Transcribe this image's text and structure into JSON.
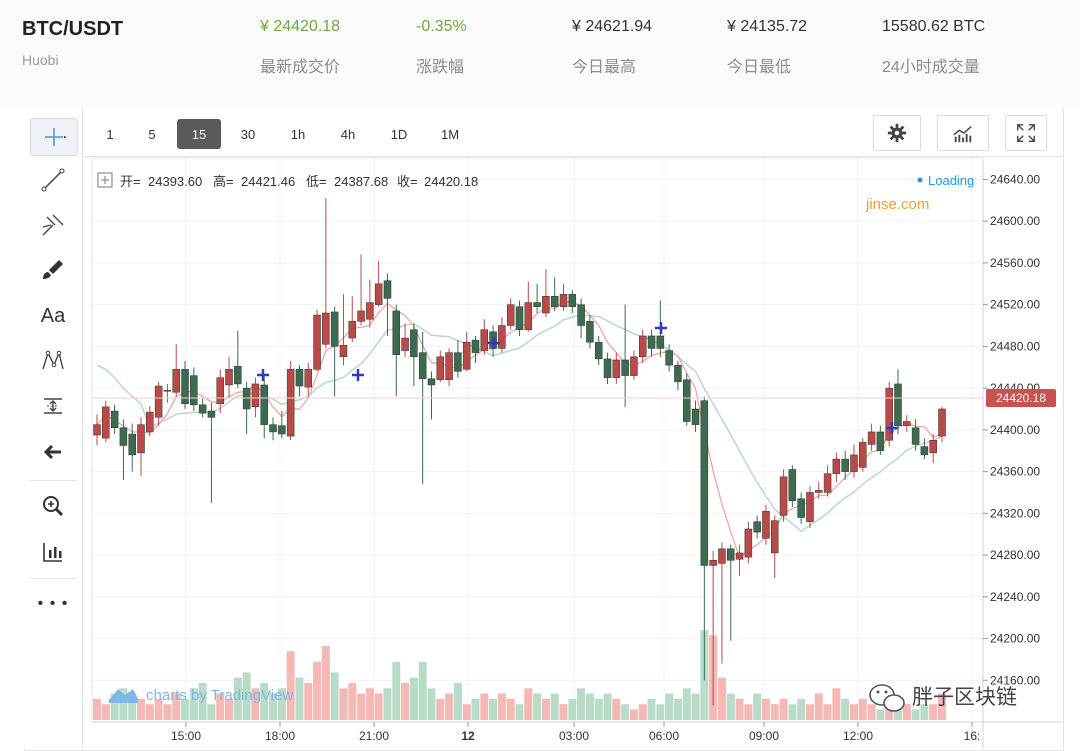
{
  "header": {
    "pair": "BTC/USDT",
    "exchange": "Huobi",
    "stats": [
      {
        "value": "¥ 24420.18",
        "label": "最新成交价",
        "color": "#6ea93e"
      },
      {
        "value": "-0.35%",
        "label": "涨跌幅",
        "color": "#6ea93e"
      },
      {
        "value": "¥ 24621.94",
        "label": "今日最高",
        "color": "#333333"
      },
      {
        "value": "¥ 24135.72",
        "label": "今日最低",
        "color": "#333333"
      },
      {
        "value": "15580.62 BTC",
        "label": "24小时成交量",
        "color": "#333333"
      }
    ]
  },
  "toolbar": {
    "intervals": [
      "1",
      "5",
      "15",
      "30",
      "1h",
      "4h",
      "1D",
      "1M"
    ],
    "active_interval": "15",
    "right_buttons": [
      "gear-icon",
      "indicators-icon",
      "fullscreen-icon"
    ],
    "left_tools": [
      "crosshair-icon",
      "trendline-icon",
      "pitchfork-icon",
      "brush-icon",
      "text-tool-icon",
      "pattern-icon",
      "measure-icon",
      "arrow-left-icon",
      "zoom-icon",
      "bars-icon",
      "more-icon"
    ],
    "text_tool_label": "Aa",
    "more_label": "• • •"
  },
  "legend": {
    "open_label": "开=",
    "open": "24393.60",
    "high_label": "高=",
    "high": "24421.46",
    "low_label": "低=",
    "low": "24387.68",
    "close_label": "收=",
    "close": "24420.18"
  },
  "status": {
    "loading": "Loading",
    "loading_color": "#2196f3"
  },
  "watermark": {
    "site": "jinse.com",
    "tradingview": "charts by TradingView",
    "channel": "胖子区块链"
  },
  "current_price_tag": "24420.18",
  "chart_data": {
    "type": "candlestick",
    "ylim": [
      24120,
      24650
    ],
    "y_ticks": [
      "24640.00",
      "24600.00",
      "24560.00",
      "24520.00",
      "24480.00",
      "24440.00",
      "24400.00",
      "24360.00",
      "24320.00",
      "24280.00",
      "24240.00",
      "24200.00",
      "24160.00"
    ],
    "x_ticks": [
      "15:00",
      "18:00",
      "21:00",
      "12",
      "03:00",
      "06:00",
      "09:00",
      "12:00",
      "16:"
    ],
    "colors": {
      "up": "#b94a48",
      "down": "#3d6b4f",
      "up_vol": "#f4b8b5",
      "down_vol": "#b9dcc9",
      "ma_fast": "#e8a9a7",
      "ma_slow": "#b9d8c8"
    },
    "candles": [
      {
        "o": 24395,
        "c": 24405,
        "h": 24415,
        "l": 24385,
        "v": 0.4
      },
      {
        "o": 24392,
        "c": 24422,
        "h": 24428,
        "l": 24388,
        "v": 0.3
      },
      {
        "o": 24418,
        "c": 24402,
        "h": 24424,
        "l": 24396,
        "v": 0.5
      },
      {
        "o": 24402,
        "c": 24385,
        "h": 24410,
        "l": 24352,
        "v": 0.6
      },
      {
        "o": 24396,
        "c": 24376,
        "h": 24406,
        "l": 24360,
        "v": 0.5
      },
      {
        "o": 24378,
        "c": 24405,
        "h": 24412,
        "l": 24356,
        "v": 0.4
      },
      {
        "o": 24398,
        "c": 24417,
        "h": 24423,
        "l": 24394,
        "v": 0.3
      },
      {
        "o": 24412,
        "c": 24442,
        "h": 24446,
        "l": 24404,
        "v": 0.4
      },
      {
        "o": 24437,
        "c": 24438,
        "h": 24444,
        "l": 24426,
        "v": 0.3
      },
      {
        "o": 24436,
        "c": 24458,
        "h": 24482,
        "l": 24432,
        "v": 0.5
      },
      {
        "o": 24458,
        "c": 24425,
        "h": 24466,
        "l": 24420,
        "v": 0.4
      },
      {
        "o": 24452,
        "c": 24424,
        "h": 24460,
        "l": 24418,
        "v": 0.6
      },
      {
        "o": 24424,
        "c": 24416,
        "h": 24430,
        "l": 24412,
        "v": 0.7
      },
      {
        "o": 24418,
        "c": 24412,
        "h": 24426,
        "l": 24330,
        "v": 0.3
      },
      {
        "o": 24425,
        "c": 24450,
        "h": 24458,
        "l": 24416,
        "v": 0.5
      },
      {
        "o": 24443,
        "c": 24458,
        "h": 24470,
        "l": 24430,
        "v": 0.4
      },
      {
        "o": 24461,
        "c": 24444,
        "h": 24495,
        "l": 24440,
        "v": 0.8
      },
      {
        "o": 24440,
        "c": 24420,
        "h": 24446,
        "l": 24396,
        "v": 0.9
      },
      {
        "o": 24422,
        "c": 24444,
        "h": 24450,
        "l": 24412,
        "v": 0.6
      },
      {
        "o": 24443,
        "c": 24405,
        "h": 24452,
        "l": 24392,
        "v": 0.7
      },
      {
        "o": 24405,
        "c": 24398,
        "h": 24412,
        "l": 24390,
        "v": 0.5
      },
      {
        "o": 24404,
        "c": 24396,
        "h": 24418,
        "l": 24392,
        "v": 0.6
      },
      {
        "o": 24394,
        "c": 24458,
        "h": 24466,
        "l": 24390,
        "v": 1.3
      },
      {
        "o": 24458,
        "c": 24442,
        "h": 24462,
        "l": 24432,
        "v": 0.8
      },
      {
        "o": 24441,
        "c": 24458,
        "h": 24464,
        "l": 24432,
        "v": 0.7
      },
      {
        "o": 24458,
        "c": 24510,
        "h": 24515,
        "l": 24456,
        "v": 1.1
      },
      {
        "o": 24482,
        "c": 24512,
        "h": 24622,
        "l": 24478,
        "v": 1.4
      },
      {
        "o": 24513,
        "c": 24480,
        "h": 24518,
        "l": 24432,
        "v": 0.9
      },
      {
        "o": 24470,
        "c": 24481,
        "h": 24530,
        "l": 24462,
        "v": 0.6
      },
      {
        "o": 24488,
        "c": 24504,
        "h": 24528,
        "l": 24484,
        "v": 0.7
      },
      {
        "o": 24504,
        "c": 24514,
        "h": 24568,
        "l": 24500,
        "v": 0.5
      },
      {
        "o": 24506,
        "c": 24522,
        "h": 24544,
        "l": 24498,
        "v": 0.6
      },
      {
        "o": 24520,
        "c": 24540,
        "h": 24562,
        "l": 24518,
        "v": 0.5
      },
      {
        "o": 24543,
        "c": 24526,
        "h": 24550,
        "l": 24490,
        "v": 0.6
      },
      {
        "o": 24514,
        "c": 24472,
        "h": 24520,
        "l": 24432,
        "v": 1.1
      },
      {
        "o": 24476,
        "c": 24488,
        "h": 24502,
        "l": 24470,
        "v": 0.7
      },
      {
        "o": 24496,
        "c": 24470,
        "h": 24502,
        "l": 24442,
        "v": 0.8
      },
      {
        "o": 24474,
        "c": 24449,
        "h": 24494,
        "l": 24348,
        "v": 1.1
      },
      {
        "o": 24449,
        "c": 24443,
        "h": 24456,
        "l": 24410,
        "v": 0.6
      },
      {
        "o": 24448,
        "c": 24470,
        "h": 24476,
        "l": 24446,
        "v": 0.4
      },
      {
        "o": 24448,
        "c": 24474,
        "h": 24478,
        "l": 24442,
        "v": 0.5
      },
      {
        "o": 24474,
        "c": 24456,
        "h": 24486,
        "l": 24450,
        "v": 0.7
      },
      {
        "o": 24458,
        "c": 24484,
        "h": 24494,
        "l": 24456,
        "v": 0.3
      },
      {
        "o": 24486,
        "c": 24474,
        "h": 24490,
        "l": 24464,
        "v": 0.4
      },
      {
        "o": 24476,
        "c": 24496,
        "h": 24506,
        "l": 24472,
        "v": 0.5
      },
      {
        "o": 24494,
        "c": 24478,
        "h": 24500,
        "l": 24470,
        "v": 0.4
      },
      {
        "o": 24478,
        "c": 24500,
        "h": 24508,
        "l": 24474,
        "v": 0.5
      },
      {
        "o": 24500,
        "c": 24520,
        "h": 24526,
        "l": 24496,
        "v": 0.4
      },
      {
        "o": 24518,
        "c": 24496,
        "h": 24524,
        "l": 24490,
        "v": 0.3
      },
      {
        "o": 24496,
        "c": 24522,
        "h": 24542,
        "l": 24494,
        "v": 0.6
      },
      {
        "o": 24522,
        "c": 24518,
        "h": 24540,
        "l": 24512,
        "v": 0.5
      },
      {
        "o": 24512,
        "c": 24528,
        "h": 24554,
        "l": 24508,
        "v": 0.4
      },
      {
        "o": 24528,
        "c": 24518,
        "h": 24546,
        "l": 24514,
        "v": 0.5
      },
      {
        "o": 24518,
        "c": 24530,
        "h": 24540,
        "l": 24514,
        "v": 0.3
      },
      {
        "o": 24530,
        "c": 24518,
        "h": 24534,
        "l": 24512,
        "v": 0.4
      },
      {
        "o": 24520,
        "c": 24500,
        "h": 24526,
        "l": 24488,
        "v": 0.6
      },
      {
        "o": 24504,
        "c": 24484,
        "h": 24510,
        "l": 24478,
        "v": 0.5
      },
      {
        "o": 24484,
        "c": 24468,
        "h": 24490,
        "l": 24462,
        "v": 0.4
      },
      {
        "o": 24468,
        "c": 24450,
        "h": 24474,
        "l": 24444,
        "v": 0.5
      },
      {
        "o": 24450,
        "c": 24467,
        "h": 24474,
        "l": 24444,
        "v": 0.4
      },
      {
        "o": 24467,
        "c": 24452,
        "h": 24520,
        "l": 24422,
        "v": 0.3
      },
      {
        "o": 24452,
        "c": 24470,
        "h": 24476,
        "l": 24448,
        "v": 0.2
      },
      {
        "o": 24470,
        "c": 24490,
        "h": 24496,
        "l": 24464,
        "v": 0.3
      },
      {
        "o": 24490,
        "c": 24478,
        "h": 24496,
        "l": 24470,
        "v": 0.4
      },
      {
        "o": 24490,
        "c": 24478,
        "h": 24524,
        "l": 24470,
        "v": 0.3
      },
      {
        "o": 24476,
        "c": 24462,
        "h": 24482,
        "l": 24456,
        "v": 0.5
      },
      {
        "o": 24462,
        "c": 24446,
        "h": 24466,
        "l": 24438,
        "v": 0.4
      },
      {
        "o": 24448,
        "c": 24408,
        "h": 24454,
        "l": 24404,
        "v": 0.6
      },
      {
        "o": 24420,
        "c": 24405,
        "h": 24428,
        "l": 24398,
        "v": 0.5
      },
      {
        "o": 24428,
        "c": 24270,
        "h": 24432,
        "l": 24160,
        "v": 1.7
      },
      {
        "o": 24270,
        "c": 24275,
        "h": 24284,
        "l": 24136,
        "v": 1.6
      },
      {
        "o": 24272,
        "c": 24286,
        "h": 24292,
        "l": 24176,
        "v": 0.8
      },
      {
        "o": 24286,
        "c": 24275,
        "h": 24290,
        "l": 24198,
        "v": 0.5
      },
      {
        "o": 24276,
        "c": 24282,
        "h": 24290,
        "l": 24260,
        "v": 0.4
      },
      {
        "o": 24278,
        "c": 24305,
        "h": 24312,
        "l": 24272,
        "v": 0.3
      },
      {
        "o": 24312,
        "c": 24302,
        "h": 24318,
        "l": 24296,
        "v": 0.5
      },
      {
        "o": 24296,
        "c": 24322,
        "h": 24328,
        "l": 24290,
        "v": 0.4
      },
      {
        "o": 24282,
        "c": 24313,
        "h": 24318,
        "l": 24258,
        "v": 0.3
      },
      {
        "o": 24318,
        "c": 24355,
        "h": 24362,
        "l": 24312,
        "v": 0.4
      },
      {
        "o": 24362,
        "c": 24332,
        "h": 24366,
        "l": 24326,
        "v": 0.3
      },
      {
        "o": 24334,
        "c": 24316,
        "h": 24340,
        "l": 24310,
        "v": 0.4
      },
      {
        "o": 24312,
        "c": 24340,
        "h": 24346,
        "l": 24306,
        "v": 0.3
      },
      {
        "o": 24340,
        "c": 24342,
        "h": 24350,
        "l": 24334,
        "v": 0.5
      },
      {
        "o": 24340,
        "c": 24358,
        "h": 24366,
        "l": 24336,
        "v": 0.3
      },
      {
        "o": 24358,
        "c": 24372,
        "h": 24378,
        "l": 24350,
        "v": 0.6
      },
      {
        "o": 24372,
        "c": 24360,
        "h": 24380,
        "l": 24352,
        "v": 0.4
      },
      {
        "o": 24360,
        "c": 24376,
        "h": 24386,
        "l": 24354,
        "v": 0.3
      },
      {
        "o": 24364,
        "c": 24388,
        "h": 24392,
        "l": 24360,
        "v": 0.4
      },
      {
        "o": 24386,
        "c": 24398,
        "h": 24406,
        "l": 24380,
        "v": 0.3
      },
      {
        "o": 24398,
        "c": 24380,
        "h": 24404,
        "l": 24376,
        "v": 0.2
      },
      {
        "o": 24390,
        "c": 24440,
        "h": 24446,
        "l": 24384,
        "v": 0.3
      },
      {
        "o": 24444,
        "c": 24404,
        "h": 24458,
        "l": 24396,
        "v": 0.4
      },
      {
        "o": 24404,
        "c": 24408,
        "h": 24414,
        "l": 24398,
        "v": 0.3
      },
      {
        "o": 24402,
        "c": 24386,
        "h": 24410,
        "l": 24380,
        "v": 0.2
      },
      {
        "o": 24384,
        "c": 24376,
        "h": 24392,
        "l": 24372,
        "v": 0.3
      },
      {
        "o": 24378,
        "c": 24390,
        "h": 24396,
        "l": 24368,
        "v": 0.3
      },
      {
        "o": 24394,
        "c": 24420,
        "h": 24422,
        "l": 24388,
        "v": 0.5
      }
    ]
  }
}
